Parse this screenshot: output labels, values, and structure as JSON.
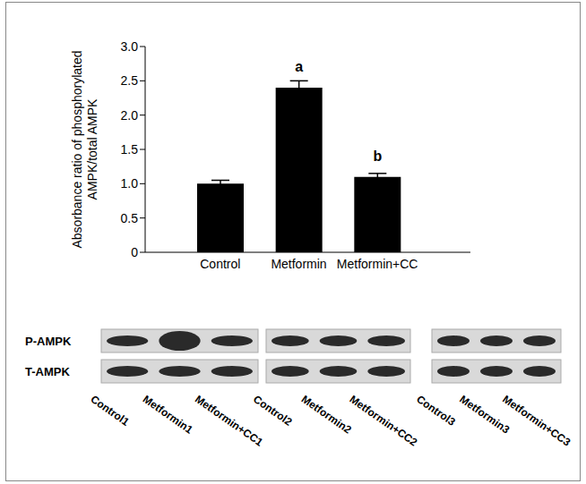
{
  "chart_data": {
    "type": "bar",
    "ylabel": "Absorbance ratio of phosphorylated\nAMPK/total AMPK",
    "categories": [
      "Control",
      "Metformin",
      "Metformin+CC"
    ],
    "values": [
      1.0,
      2.4,
      1.1
    ],
    "error": [
      0.05,
      0.1,
      0.05
    ],
    "annotations": [
      null,
      "a",
      "b"
    ],
    "color": "#000000",
    "ylim": [
      0,
      3
    ],
    "yticks": [
      0,
      0.5,
      {
        "value": 1,
        "label": "1.0"
      },
      1.5,
      {
        "value": 2,
        "label": "2.0"
      },
      2.5,
      {
        "value": 3,
        "label": "3.0"
      }
    ],
    "grid": false
  },
  "western_blot": {
    "rows": [
      "P-AMPK",
      "T-AMPK"
    ],
    "panels": [
      [
        "Control1",
        "Metformin1",
        "Metformin+CC1"
      ],
      [
        "Control2",
        "Metformin2",
        "Metformin+CC2"
      ],
      [
        "Control3",
        "Metformin3",
        "Metformin+CC3"
      ]
    ]
  }
}
